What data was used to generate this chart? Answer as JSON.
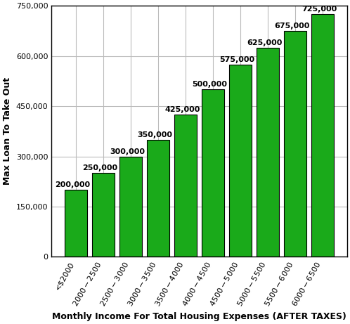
{
  "categories": [
    "<$2000",
    "$2000-$2500",
    "$2500-$3000",
    "$3000-$3500",
    "$3500-$4000",
    "$4000-$4500",
    "$4500-$5000",
    "$5000-$5500",
    "$5500-$6000",
    "$6000-$6500"
  ],
  "values": [
    200000,
    250000,
    300000,
    350000,
    425000,
    500000,
    575000,
    625000,
    675000,
    725000
  ],
  "bar_color": "#1aaa1a",
  "bar_edge_color": "#000000",
  "xlabel": "Monthly Income For Total Housing Expenses (AFTER TAXES)",
  "ylabel": "Max Loan To Take Out",
  "ylim": [
    0,
    750000
  ],
  "yticks": [
    0,
    150000,
    300000,
    450000,
    600000,
    750000
  ],
  "xlabel_fontsize": 9,
  "ylabel_fontsize": 9,
  "tick_label_fontsize": 8,
  "bar_label_fontsize": 8,
  "grid_color": "#bbbbbb",
  "background_color": "#ffffff"
}
